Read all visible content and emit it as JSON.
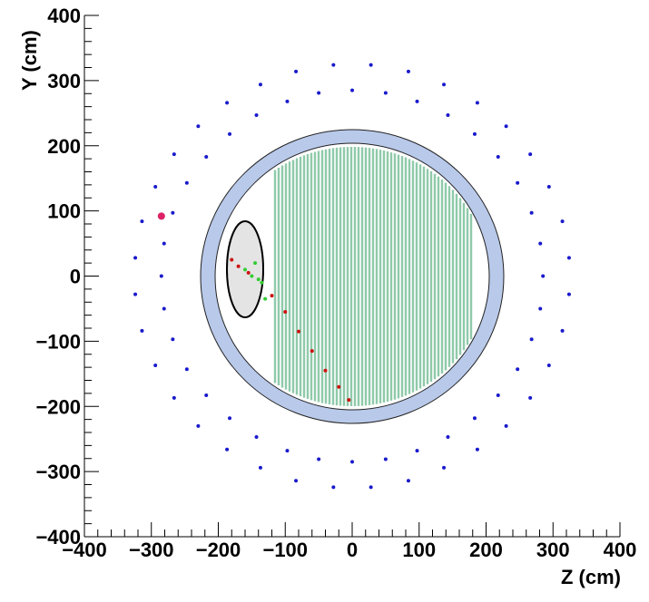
{
  "chart_data": {
    "type": "scatter",
    "x_label": "Z (cm)",
    "y_label": "Y (cm)",
    "xlim": [
      -400,
      400
    ],
    "ylim": [
      -400,
      400
    ],
    "xticks": [
      {
        "value": -400,
        "label": "−400"
      },
      {
        "value": -300,
        "label": "−300"
      },
      {
        "value": -200,
        "label": "−200"
      },
      {
        "value": -100,
        "label": "−100"
      },
      0,
      100,
      200,
      300,
      400
    ],
    "yticks": [
      {
        "value": -400,
        "label": "−400"
      },
      {
        "value": -300,
        "label": "−300"
      },
      {
        "value": -200,
        "label": "−200"
      },
      {
        "value": -100,
        "label": "−100"
      },
      0,
      100,
      200,
      300,
      400
    ],
    "series": [
      {
        "color": "#1a1acc",
        "x": [
          285,
          281,
          268,
          247,
          218,
          183,
          143,
          97,
          50,
          0,
          -50,
          -97,
          -143,
          -183,
          -218,
          -247,
          -268,
          -281,
          -285,
          -281,
          -268,
          -247,
          -218,
          -183,
          -143,
          -97,
          -50,
          0,
          50,
          97,
          143,
          183,
          218,
          247,
          268,
          281,
          324,
          314,
          294,
          266,
          230,
          187,
          137,
          84,
          28,
          -28,
          -84,
          -137,
          -187,
          -230,
          -266,
          -294,
          -314,
          -324,
          -324,
          -314,
          -294,
          -266,
          -230,
          -187,
          -137,
          -84,
          -28,
          28,
          84,
          137,
          187,
          230,
          266,
          294,
          314,
          324
        ],
        "values": [
          0,
          50,
          97,
          143,
          183,
          218,
          247,
          268,
          281,
          285,
          281,
          268,
          247,
          218,
          183,
          143,
          97,
          50,
          0,
          -50,
          -97,
          -143,
          -183,
          -218,
          -247,
          -268,
          -281,
          -285,
          -281,
          -268,
          -247,
          -218,
          -183,
          -143,
          -97,
          -50,
          28,
          84,
          137,
          187,
          230,
          266,
          294,
          314,
          324,
          324,
          314,
          294,
          266,
          230,
          187,
          137,
          84,
          28,
          -28,
          -84,
          -137,
          -187,
          -230,
          -266,
          -294,
          -314,
          -324,
          -324,
          -314,
          -294,
          -266,
          -230,
          -187,
          -137,
          -84,
          -28
        ]
      },
      {
        "color": "#cc1111",
        "x": [
          -120,
          -100,
          -80,
          -60,
          -40,
          -20,
          -5,
          -180,
          -170,
          -155
        ],
        "values": [
          -30,
          -55,
          -85,
          -115,
          -145,
          -170,
          -190,
          25,
          15,
          5
        ]
      },
      {
        "color": "#33cc33",
        "x": [
          -160,
          -150,
          -140,
          -135,
          -145,
          -130
        ],
        "values": [
          10,
          0,
          -5,
          -10,
          20,
          -35
        ]
      },
      {
        "color": "#dd2266",
        "x": [
          -285
        ],
        "values": [
          92
        ]
      }
    ]
  }
}
